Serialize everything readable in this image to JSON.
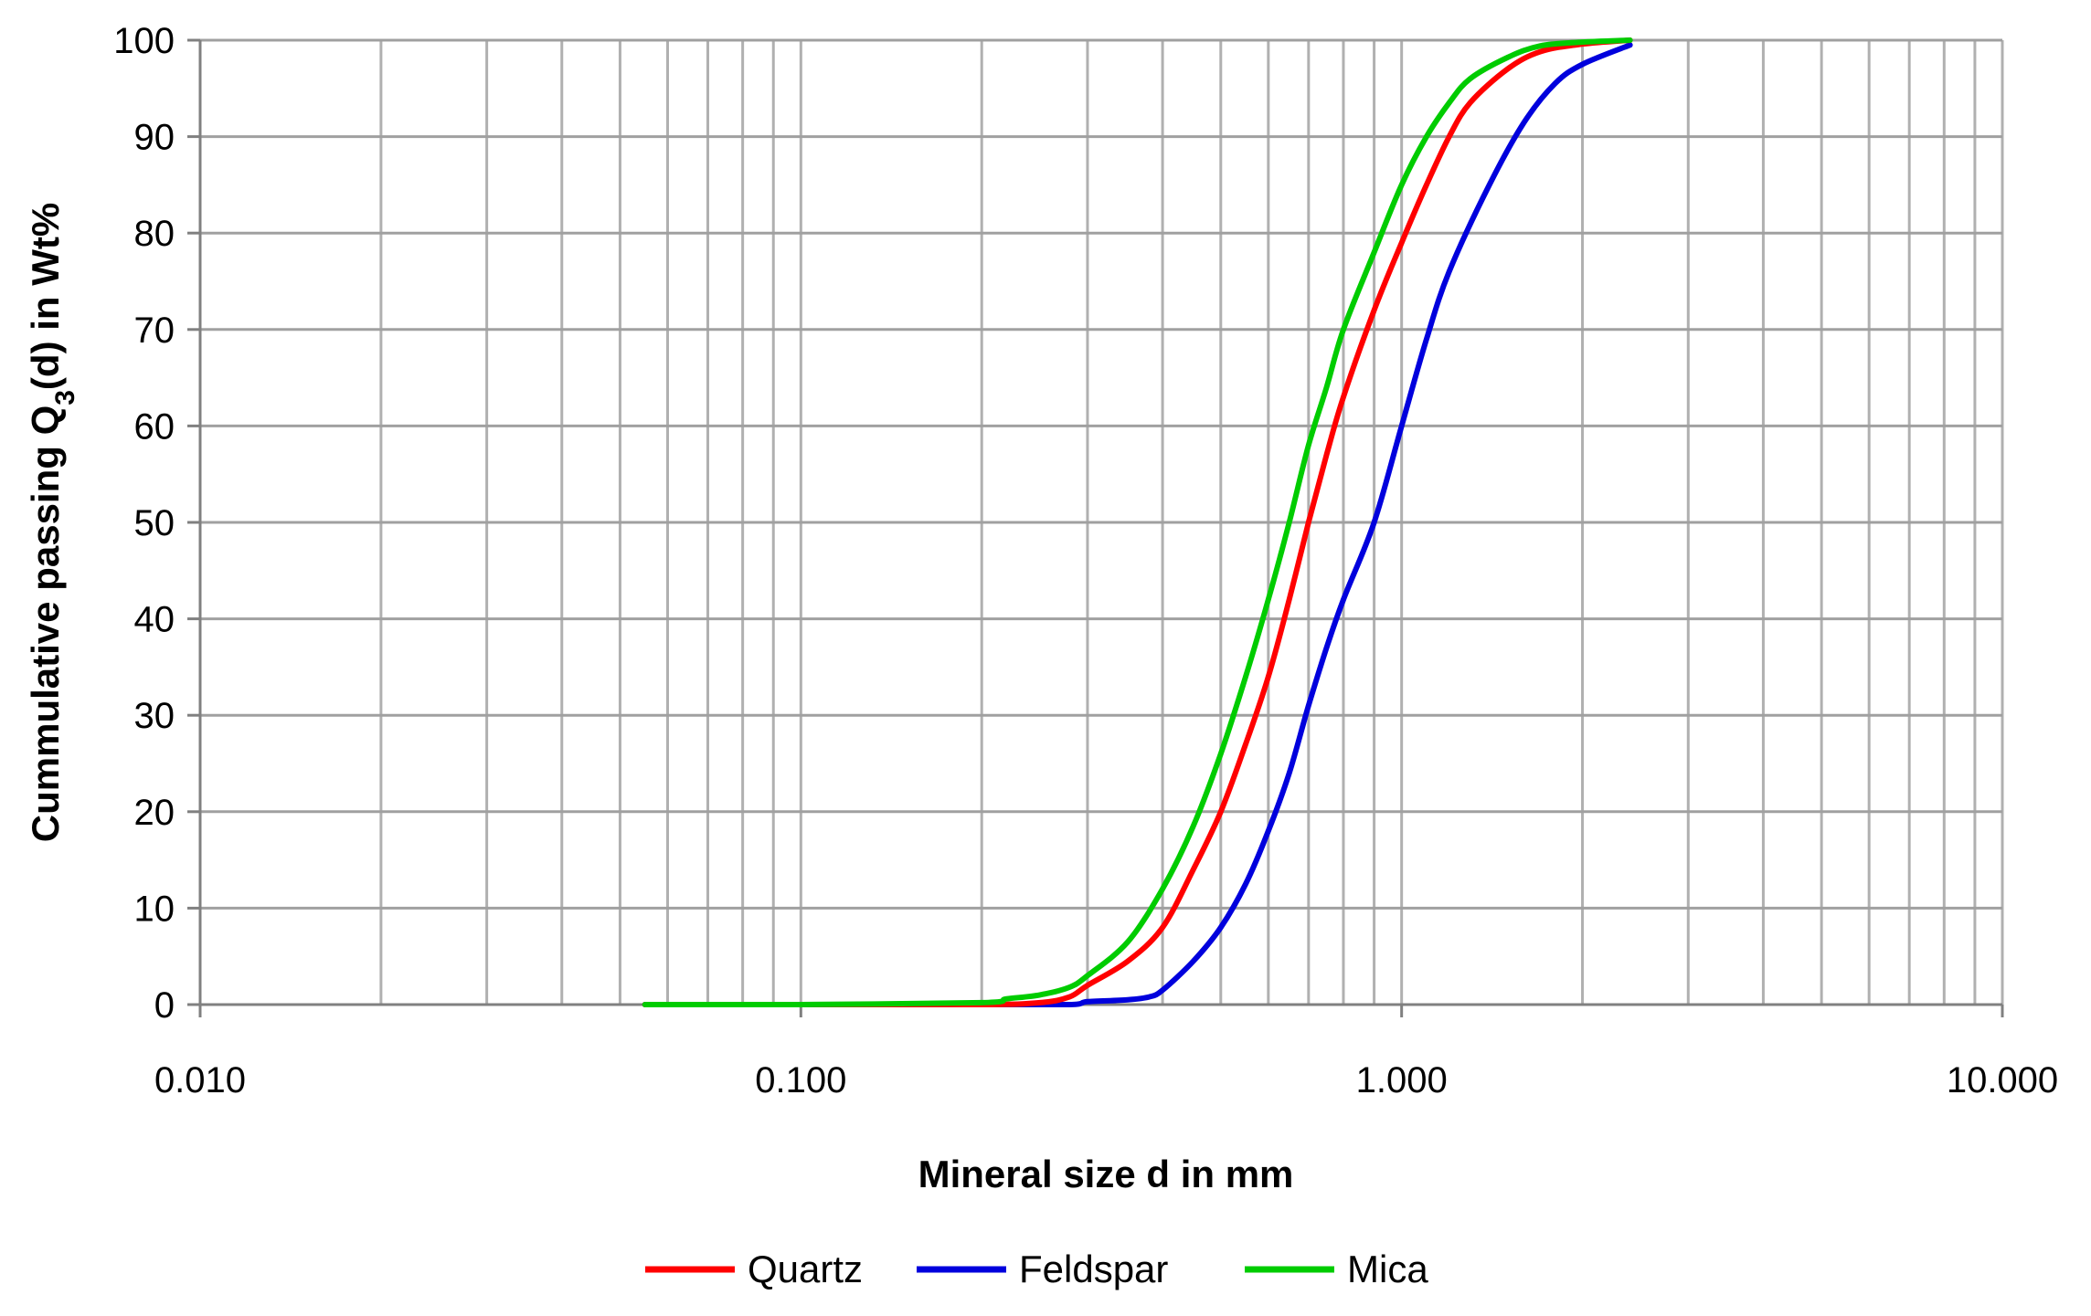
{
  "chart_data": {
    "type": "line",
    "title": "",
    "xlabel": "Mineral size d in mm",
    "ylabel_parts": {
      "before": "Cummulative passing Q",
      "sub": "3",
      "after": "(d) in Wt%"
    },
    "x_scale": "log",
    "xlim": [
      0.01,
      10
    ],
    "ylim": [
      0,
      100
    ],
    "x_ticks": [
      0.01,
      0.1,
      1,
      10
    ],
    "x_tick_labels": [
      "0.010",
      "0.100",
      "1.000",
      "10.000"
    ],
    "y_ticks": [
      0,
      10,
      20,
      30,
      40,
      50,
      60,
      70,
      80,
      90,
      100
    ],
    "y_tick_labels": [
      "0",
      "10",
      "20",
      "30",
      "40",
      "50",
      "60",
      "70",
      "80",
      "90",
      "100"
    ],
    "grid": true,
    "legend_position": "bottom-center",
    "series": [
      {
        "name": "Quartz",
        "color": "#ff0000",
        "points": [
          [
            0.055,
            0
          ],
          [
            0.1,
            0
          ],
          [
            0.2,
            0
          ],
          [
            0.25,
            0.2
          ],
          [
            0.28,
            0.8
          ],
          [
            0.3,
            2
          ],
          [
            0.35,
            4.5
          ],
          [
            0.4,
            8
          ],
          [
            0.45,
            14
          ],
          [
            0.5,
            20
          ],
          [
            0.55,
            27
          ],
          [
            0.6,
            34
          ],
          [
            0.65,
            42
          ],
          [
            0.7,
            50
          ],
          [
            0.75,
            57
          ],
          [
            0.8,
            63
          ],
          [
            0.9,
            72
          ],
          [
            1.0,
            79
          ],
          [
            1.1,
            85
          ],
          [
            1.2,
            90
          ],
          [
            1.3,
            93.5
          ],
          [
            1.5,
            97
          ],
          [
            1.7,
            98.8
          ],
          [
            2.0,
            99.6
          ],
          [
            2.4,
            100
          ]
        ]
      },
      {
        "name": "Feldspar",
        "color": "#0000dd",
        "points": [
          [
            0.055,
            0
          ],
          [
            0.1,
            0
          ],
          [
            0.2,
            0
          ],
          [
            0.28,
            0
          ],
          [
            0.3,
            0.3
          ],
          [
            0.35,
            0.5
          ],
          [
            0.38,
            0.8
          ],
          [
            0.4,
            1.5
          ],
          [
            0.45,
            4.5
          ],
          [
            0.5,
            8
          ],
          [
            0.55,
            12.5
          ],
          [
            0.6,
            18
          ],
          [
            0.65,
            24
          ],
          [
            0.7,
            31
          ],
          [
            0.75,
            37
          ],
          [
            0.8,
            42
          ],
          [
            0.9,
            50
          ],
          [
            1.0,
            60
          ],
          [
            1.1,
            69
          ],
          [
            1.2,
            76
          ],
          [
            1.4,
            85
          ],
          [
            1.6,
            91.5
          ],
          [
            1.8,
            95.5
          ],
          [
            2.0,
            97.5
          ],
          [
            2.4,
            99.5
          ]
        ]
      },
      {
        "name": "Mica",
        "color": "#00cc00",
        "points": [
          [
            0.055,
            0
          ],
          [
            0.1,
            0
          ],
          [
            0.2,
            0.2
          ],
          [
            0.22,
            0.6
          ],
          [
            0.25,
            1
          ],
          [
            0.28,
            1.8
          ],
          [
            0.3,
            3
          ],
          [
            0.35,
            6.5
          ],
          [
            0.4,
            12
          ],
          [
            0.45,
            18.5
          ],
          [
            0.5,
            26
          ],
          [
            0.55,
            34
          ],
          [
            0.6,
            42
          ],
          [
            0.65,
            50
          ],
          [
            0.7,
            58
          ],
          [
            0.75,
            64
          ],
          [
            0.8,
            70
          ],
          [
            0.9,
            78
          ],
          [
            1.0,
            85
          ],
          [
            1.1,
            90
          ],
          [
            1.2,
            93.5
          ],
          [
            1.3,
            96
          ],
          [
            1.5,
            98.2
          ],
          [
            1.7,
            99.4
          ],
          [
            2.0,
            99.8
          ],
          [
            2.4,
            100
          ]
        ]
      }
    ]
  }
}
